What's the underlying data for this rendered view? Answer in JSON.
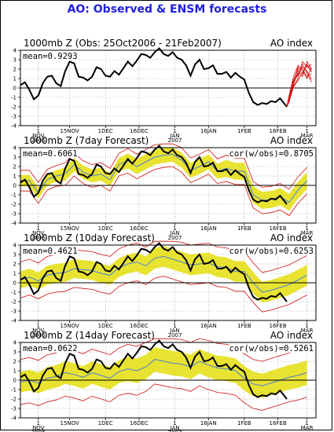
{
  "page": {
    "title": "AO: Observed & ENSM forecasts",
    "title_color": "#1f1fe0"
  },
  "colors": {
    "observed": "#000000",
    "ensemble_mean": "#4a7fd6",
    "ensemble_range": "#d01010",
    "spread_fill": "#e8e330",
    "zero_line": "#000000",
    "grid": "#888888"
  },
  "axis": {
    "y_ticks": [
      "4",
      "3",
      "2",
      "1",
      "0",
      "-1",
      "-2",
      "-3",
      "-4"
    ],
    "x_ticks": [
      {
        "line1": "1",
        "line2": "NOV",
        "line3": "2006"
      },
      {
        "line1": "15NOV",
        "line2": "",
        "line3": ""
      },
      {
        "line1": "1DEC",
        "line2": "",
        "line3": ""
      },
      {
        "line1": "16DEC",
        "line2": "",
        "line3": ""
      },
      {
        "line1": "1",
        "line2": "JAN",
        "line3": "2007"
      },
      {
        "line1": "16JAN",
        "line2": "",
        "line3": ""
      },
      {
        "line1": "1FEB",
        "line2": "",
        "line3": ""
      },
      {
        "line1": "16FEB",
        "line2": "",
        "line3": ""
      },
      {
        "line1": "1",
        "line2": "MAR",
        "line3": ""
      }
    ]
  },
  "chart_data": [
    {
      "type": "line",
      "title": "1000mb Z (Obs: 25Oct2006 - 21Feb2007)",
      "index_label": "AO index",
      "mean_label": "mean=0.9293",
      "corr_label": "",
      "x_unit": "day index from 25 Oct 2006",
      "ylim": [
        -4,
        4
      ],
      "observed": {
        "x": [
          0,
          2,
          4,
          6,
          8,
          10,
          12,
          14,
          16,
          18,
          20,
          22,
          24,
          26,
          28,
          30,
          32,
          34,
          36,
          38,
          40,
          42,
          44,
          46,
          48,
          50,
          52,
          54,
          56,
          58,
          60,
          62,
          64,
          66,
          68,
          70,
          72,
          74,
          76,
          78,
          80,
          82,
          84,
          86,
          88,
          90,
          92,
          94,
          96,
          98,
          100,
          102,
          104,
          106,
          108,
          110,
          112,
          114,
          116,
          119
        ],
        "y": [
          0.3,
          0.6,
          -0.2,
          -1.2,
          -0.8,
          0.5,
          1.2,
          1.3,
          0.5,
          0.2,
          1.8,
          2.8,
          2.6,
          1.2,
          1.1,
          0.8,
          1.2,
          2.2,
          2.0,
          1.3,
          1.2,
          1.8,
          1.4,
          2.1,
          2.8,
          2.3,
          2.9,
          3.6,
          3.5,
          3.2,
          3.8,
          4.2,
          3.6,
          3.4,
          3.8,
          3.2,
          3.0,
          2.4,
          1.3,
          2.5,
          3.0,
          2.0,
          2.1,
          2.4,
          1.5,
          1.5,
          1.7,
          1.1,
          1.6,
          1.2,
          0.9,
          -0.5,
          -1.5,
          -1.8,
          -1.6,
          -1.7,
          -1.4,
          -1.5,
          -1.1,
          -2.0
        ]
      },
      "ensemble_members_x": [
        119,
        120,
        122,
        124,
        126,
        128,
        130
      ],
      "ensemble_members": [
        [
          -2.0,
          -1.2,
          0.5,
          1.5,
          2.2,
          1.8,
          0.9
        ],
        [
          -2.0,
          -1.0,
          0.8,
          2.0,
          1.5,
          2.5,
          1.8
        ],
        [
          -2.0,
          -1.5,
          0.2,
          1.0,
          2.8,
          2.2,
          2.5
        ],
        [
          -2.0,
          -0.8,
          1.2,
          2.4,
          2.0,
          1.2,
          1.5
        ],
        [
          -2.0,
          -1.3,
          0.4,
          1.8,
          1.2,
          2.8,
          2.0
        ],
        [
          -2.0,
          -1.1,
          0.9,
          1.3,
          2.5,
          1.6,
          0.6
        ],
        [
          -2.0,
          -0.9,
          0.6,
          2.2,
          1.8,
          1.0,
          2.2
        ],
        [
          -2.0,
          -1.4,
          0.1,
          0.8,
          1.6,
          2.4,
          1.7
        ]
      ]
    },
    {
      "type": "line",
      "title": "1000mb Z (7day Forecast)",
      "index_label": "AO index",
      "mean_label": "mean=0.6061",
      "corr_label": "cor(w/obs)=0.8705",
      "x_unit": "day index from 25 Oct 2006",
      "ylim": [
        -4,
        4
      ],
      "observed_x_end": 119,
      "forecast": {
        "x": [
          0,
          4,
          8,
          12,
          16,
          20,
          24,
          28,
          32,
          36,
          40,
          44,
          48,
          52,
          56,
          60,
          64,
          68,
          72,
          76,
          80,
          84,
          88,
          92,
          96,
          100,
          104,
          108,
          112,
          116,
          120,
          124,
          128
        ],
        "mean": [
          0.5,
          0.5,
          -0.8,
          0.6,
          1.0,
          1.2,
          2.2,
          1.4,
          1.0,
          1.2,
          0.6,
          2.2,
          2.6,
          2.0,
          2.5,
          3.0,
          3.2,
          3.3,
          2.7,
          1.6,
          2.0,
          2.5,
          1.5,
          1.8,
          1.5,
          1.5,
          -1.0,
          -1.6,
          -1.5,
          -1.2,
          -1.8,
          -0.5,
          0.5
        ],
        "spread": [
          0.6,
          0.6,
          0.6,
          0.6,
          0.6,
          0.7,
          0.7,
          0.7,
          0.7,
          0.7,
          0.7,
          0.7,
          0.8,
          0.8,
          0.8,
          0.8,
          0.8,
          0.8,
          0.8,
          0.8,
          0.8,
          0.8,
          0.8,
          0.9,
          0.9,
          0.9,
          0.9,
          0.9,
          0.9,
          0.9,
          0.9,
          0.9,
          0.9
        ],
        "range": [
          1.1,
          1.1,
          1.1,
          1.1,
          1.1,
          1.2,
          1.2,
          1.2,
          1.2,
          1.2,
          1.2,
          1.2,
          1.3,
          1.3,
          1.3,
          1.3,
          1.3,
          1.3,
          1.3,
          1.3,
          1.3,
          1.3,
          1.3,
          1.4,
          1.4,
          1.4,
          1.4,
          1.4,
          1.4,
          1.4,
          1.4,
          1.4,
          1.4
        ]
      }
    },
    {
      "type": "line",
      "title": "1000mb Z (10day Forecast)",
      "index_label": "AO index",
      "mean_label": "mean=0.4621",
      "corr_label": "cor(w/obs)=0.6253",
      "x_unit": "day index from 25 Oct 2006",
      "ylim": [
        -4,
        4
      ],
      "observed_x_end": 119,
      "forecast": {
        "x": [
          0,
          4,
          8,
          12,
          16,
          20,
          24,
          28,
          32,
          36,
          40,
          44,
          48,
          52,
          56,
          60,
          64,
          68,
          72,
          76,
          80,
          84,
          88,
          92,
          96,
          100,
          104,
          108,
          112,
          116,
          120,
          124,
          128
        ],
        "mean": [
          0.3,
          0.6,
          0.2,
          0.8,
          1.0,
          1.1,
          1.5,
          1.4,
          1.3,
          1.0,
          0.8,
          1.6,
          2.0,
          2.2,
          1.8,
          2.6,
          2.8,
          2.5,
          2.2,
          1.9,
          2.0,
          2.1,
          1.7,
          1.6,
          1.2,
          1.2,
          0.0,
          -1.0,
          -0.8,
          -0.5,
          -0.2,
          0.3,
          0.8
        ],
        "spread": [
          0.9,
          0.9,
          0.9,
          1.0,
          1.0,
          1.0,
          1.0,
          1.0,
          1.0,
          1.0,
          1.0,
          1.0,
          1.0,
          1.0,
          1.0,
          1.1,
          1.1,
          1.1,
          1.1,
          1.1,
          1.1,
          1.1,
          1.1,
          1.1,
          1.1,
          1.1,
          1.1,
          1.1,
          1.1,
          1.1,
          1.1,
          1.1,
          1.1
        ],
        "range": [
          1.9,
          1.9,
          1.9,
          2.0,
          2.0,
          2.0,
          2.0,
          2.0,
          2.0,
          2.0,
          2.0,
          2.0,
          2.0,
          2.0,
          2.0,
          2.1,
          2.1,
          2.1,
          2.1,
          2.1,
          2.1,
          2.1,
          2.1,
          2.1,
          2.1,
          2.1,
          2.1,
          2.1,
          2.1,
          2.1,
          2.1,
          2.1,
          2.1
        ]
      }
    },
    {
      "type": "line",
      "title": "1000mb Z (14day Forecast)",
      "index_label": "AO index",
      "mean_label": "mean=0.0622",
      "corr_label": "cor(w/obs)=0.5261",
      "x_unit": "day index from 25 Oct 2006",
      "ylim": [
        -4,
        4
      ],
      "observed_x_end": 119,
      "forecast": {
        "x": [
          0,
          4,
          8,
          12,
          16,
          20,
          24,
          28,
          32,
          36,
          40,
          44,
          48,
          52,
          56,
          60,
          64,
          68,
          72,
          76,
          80,
          84,
          88,
          92,
          96,
          100,
          104,
          108,
          112,
          116,
          120,
          124,
          128
        ],
        "mean": [
          -0.2,
          0.0,
          -0.3,
          0.2,
          0.4,
          0.8,
          0.6,
          0.3,
          0.8,
          0.5,
          0.2,
          0.9,
          1.2,
          1.0,
          1.4,
          2.2,
          2.0,
          1.8,
          1.7,
          1.4,
          2.0,
          1.6,
          1.3,
          1.2,
          1.0,
          0.2,
          -0.4,
          -0.6,
          -0.3,
          0.0,
          0.3,
          0.5,
          0.8
        ],
        "spread": [
          1.1,
          1.1,
          1.1,
          1.2,
          1.2,
          1.2,
          1.2,
          1.2,
          1.2,
          1.2,
          1.2,
          1.2,
          1.3,
          1.3,
          1.3,
          1.3,
          1.3,
          1.3,
          1.3,
          1.3,
          1.3,
          1.3,
          1.3,
          1.3,
          1.3,
          1.3,
          1.3,
          1.3,
          1.3,
          1.3,
          1.3,
          1.3,
          1.3
        ],
        "range": [
          2.4,
          2.4,
          2.4,
          2.5,
          2.5,
          2.5,
          2.5,
          2.5,
          2.5,
          2.5,
          2.5,
          2.5,
          2.6,
          2.6,
          2.6,
          2.6,
          2.6,
          2.6,
          2.6,
          2.6,
          2.6,
          2.6,
          2.6,
          2.6,
          2.6,
          2.6,
          2.6,
          2.6,
          2.6,
          2.6,
          2.6,
          2.6,
          2.6
        ]
      }
    }
  ]
}
